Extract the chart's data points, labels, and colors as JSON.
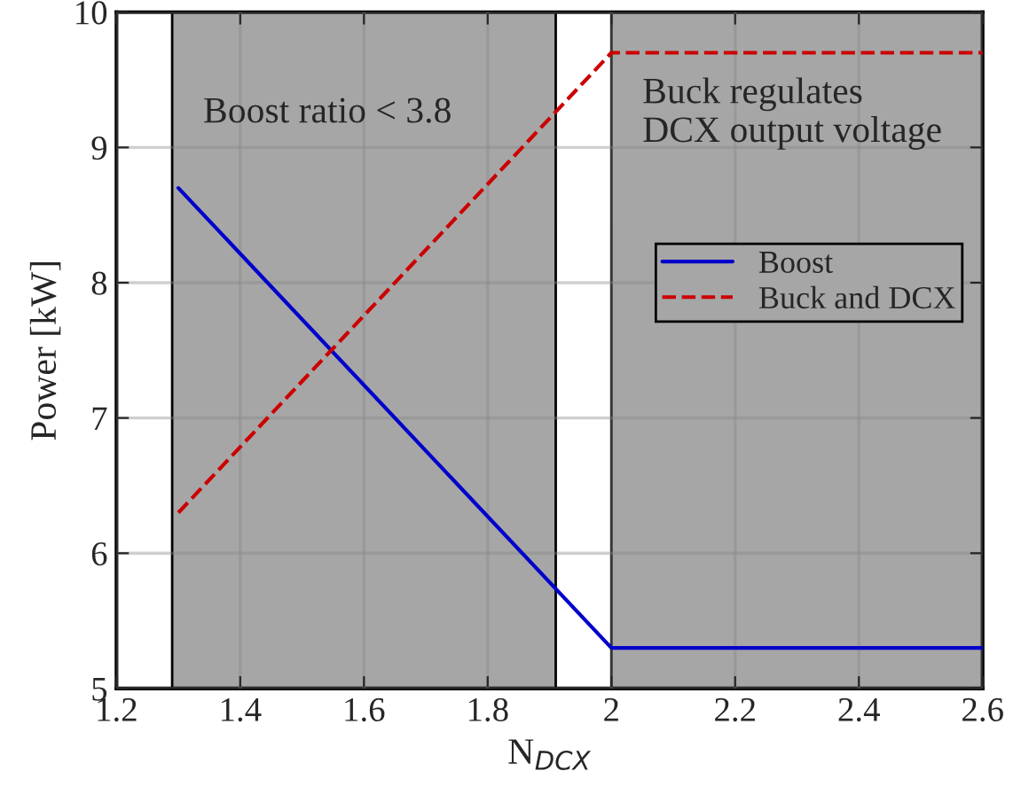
{
  "chart_data": {
    "type": "line",
    "xlabel": "N$_{DCX}$",
    "ylabel": "Power [kW]",
    "x": [
      1.3,
      2.0,
      2.6
    ],
    "series": [
      {
        "name": "Boost",
        "color": "#0000cc",
        "values": [
          8.7,
          5.3,
          5.3
        ],
        "line_style": "solid"
      },
      {
        "name": "Buck and DCX",
        "color": "#cc0000",
        "values": [
          6.3,
          9.7,
          9.7
        ],
        "line_style": "dashed"
      }
    ],
    "bands": [
      {
        "axis": "x",
        "from": 1.29,
        "to": 1.91,
        "label": "Boost ratio < 3.8",
        "color": "#a6a6a6"
      },
      {
        "axis": "x",
        "from": 2.0,
        "to": 2.6,
        "label": "Buck regulates\nDCX output voltage",
        "color": "#a6a6a6"
      }
    ],
    "xlim": [
      1.2,
      2.6
    ],
    "xticks": [
      1.2,
      1.4,
      1.6,
      1.8,
      2,
      2.2,
      2.4,
      2.6
    ],
    "ylim": [
      5,
      10
    ],
    "yticks": [
      5,
      6,
      7,
      8,
      9,
      10
    ],
    "grid": true,
    "legend": "right",
    "marker": "none"
  }
}
